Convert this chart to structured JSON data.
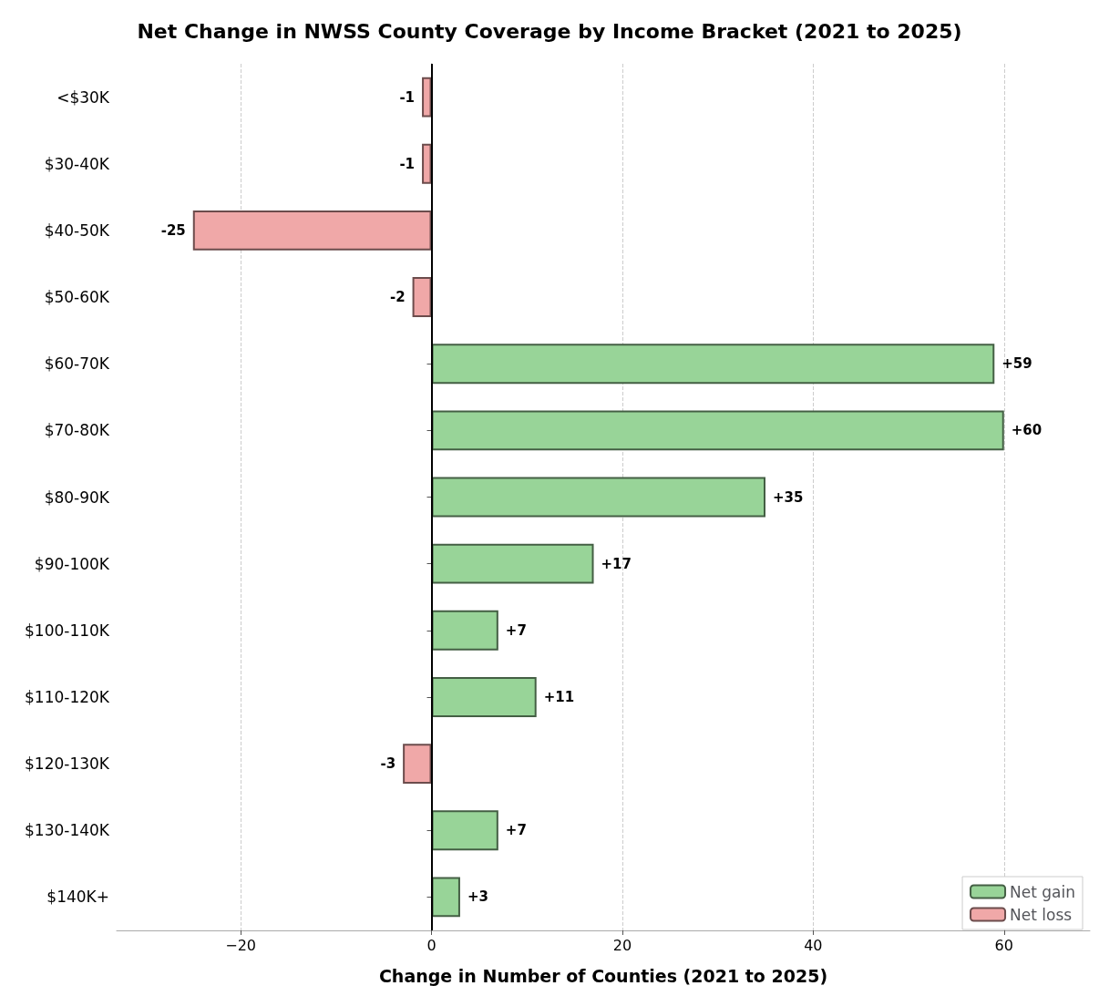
{
  "chart_data": {
    "type": "bar",
    "orientation": "horizontal",
    "stacked": true,
    "title": "Net Change in NWSS County Coverage by Income Bracket (2021 to 2025)",
    "xlabel": "Change in Number of Counties (2021 to 2025)",
    "categories": [
      "<$30K",
      "$30-40K",
      "$40-50K",
      "$50-60K",
      "$60-70K",
      "$70-80K",
      "$80-90K",
      "$90-100K",
      "$100-110K",
      "$110-120K",
      "$120-130K",
      "$130-140K",
      "$140K+"
    ],
    "series": [
      {
        "name": "Net gain",
        "color": "#98d498",
        "values": [
          null,
          null,
          null,
          null,
          59,
          60,
          35,
          17,
          7,
          11,
          null,
          7,
          3
        ],
        "value_labels": [
          null,
          null,
          null,
          null,
          "+59",
          "+60",
          "+35",
          "+17",
          "+7",
          "+11",
          null,
          "+7",
          "+3"
        ]
      },
      {
        "name": "Net loss",
        "color": "#f0a8a8",
        "values": [
          -1,
          -1,
          -25,
          -2,
          null,
          null,
          null,
          null,
          null,
          null,
          -3,
          null,
          null
        ],
        "value_labels": [
          "-1",
          "-1",
          "-25",
          "-2",
          null,
          null,
          null,
          null,
          null,
          null,
          "-3",
          null,
          null
        ]
      }
    ],
    "xlim": [
      -33,
      69
    ],
    "xticks": [
      {
        "value": -20,
        "label": "−20"
      },
      0,
      20,
      40,
      60
    ],
    "ref_lines": [
      {
        "axis": "x",
        "value": 0,
        "color": "#000000"
      }
    ],
    "grid": "x",
    "legend": "bottom right"
  }
}
